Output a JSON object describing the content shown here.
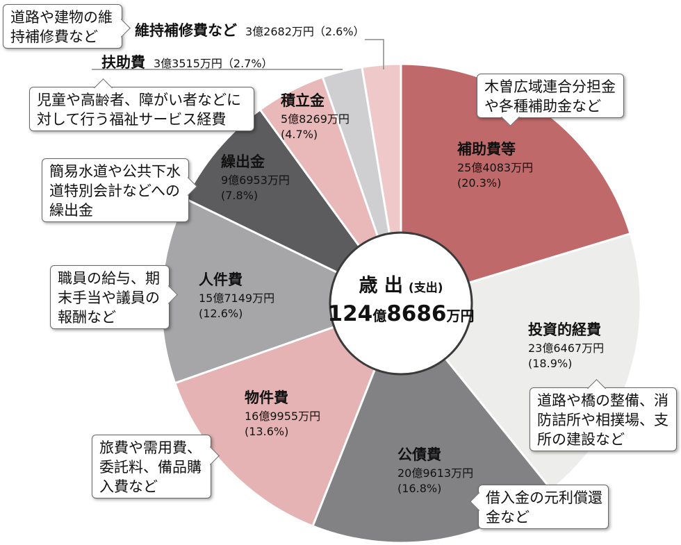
{
  "chart_data": {
    "type": "pie",
    "center": {
      "title": "歳 出",
      "sub": "(支出)",
      "amount_num": "124",
      "amount_unit1": "億",
      "amount_num2": "8686",
      "amount_unit2": "万円"
    },
    "slices": [
      {
        "name": "補助費等",
        "amount": "25億4083万円",
        "pct_label": "(20.3%)",
        "value": 20.3,
        "color": "#c0696a",
        "text_color": "#111111"
      },
      {
        "name": "投資的経費",
        "amount": "23億6467万円",
        "pct_label": "(18.9%)",
        "value": 18.9,
        "color": "#ededeb",
        "text_color": "#111111"
      },
      {
        "name": "公債費",
        "amount": "20億9613万円",
        "pct_label": "(16.8%)",
        "value": 16.8,
        "color": "#828284",
        "text_color": "#111111"
      },
      {
        "name": "物件費",
        "amount": "16億9955万円",
        "pct_label": "(13.6%)",
        "value": 13.6,
        "color": "#e5b3b4",
        "text_color": "#111111"
      },
      {
        "name": "人件費",
        "amount": "15億7149万円",
        "pct_label": "(12.6%)",
        "value": 12.6,
        "color": "#a6a5a7",
        "text_color": "#111111"
      },
      {
        "name": "繰出金",
        "amount": "9億6953万円",
        "pct_label": "(7.8%)",
        "value": 7.8,
        "color": "#5c5b5d",
        "text_color": "#ffffff"
      },
      {
        "name": "積立金",
        "amount": "5億8269万円",
        "pct_label": "(4.7%)",
        "value": 4.7,
        "color": "#e9b9ba",
        "text_color": "#111111"
      },
      {
        "name": "扶助費",
        "amount": "3億3515万円",
        "pct_label": "(2.7%)",
        "value": 2.7,
        "color": "#cfcfd1",
        "text_color": "#111111"
      },
      {
        "name": "維持補修費など",
        "amount": "3億2682万円",
        "pct_label": "(2.6%)",
        "value": 2.6,
        "color": "#efc9c9",
        "text_color": "#111111"
      }
    ],
    "outside_labels": {
      "ijihoshu": {
        "name": "維持補修費など",
        "value": "3億2682万円（2.6%）"
      },
      "fujo": {
        "name": "扶助費",
        "value": "3億3515万円（2.7%）"
      }
    },
    "notes": {
      "ijihoshu": [
        "道路や建物の維",
        "持補修費など"
      ],
      "fujo": [
        "児童や高齢者、障がい者などに",
        "対して行う福祉サービス経費"
      ],
      "kuridashi": [
        "簡易水道や公共下水",
        "道特別会計などへの",
        "繰出金"
      ],
      "jinken": [
        "職員の給与、期",
        "末手当や議員の",
        "報酬など"
      ],
      "buppin": [
        "旅費や需用費、",
        "委託料、備品購",
        "入費など"
      ],
      "kousai": [
        "借入金の元利償還",
        "金など"
      ],
      "toushi": [
        "道路や橋の整備、消",
        "防詰所や相撲場、支",
        "所の建設など"
      ],
      "hojo": [
        "木曽広域連合分担金",
        "や各種補助金など"
      ]
    }
  }
}
